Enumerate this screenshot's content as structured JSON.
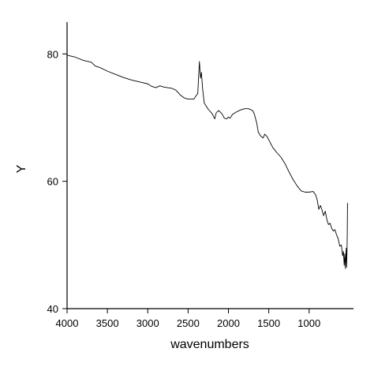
{
  "chart_data": {
    "type": "line",
    "title": "",
    "xlabel": "wavenumbers",
    "ylabel": "Y",
    "xlim": [
      4000,
      450
    ],
    "ylim": [
      40,
      85
    ],
    "x_reversed": true,
    "grid": false,
    "legend": "none",
    "x_ticks": [
      4000,
      3500,
      3000,
      2500,
      2000,
      1500,
      1000
    ],
    "y_ticks": [
      40,
      60,
      80
    ],
    "x_tick_labels": [
      "4000",
      "3500",
      "3000",
      "2500",
      "2000",
      "1500",
      "1000"
    ],
    "y_tick_labels": [
      "40",
      "60",
      "80"
    ],
    "series": [
      {
        "color": "#000000",
        "points": [
          [
            4000,
            79.8
          ],
          [
            3900,
            79.5
          ],
          [
            3800,
            79.0
          ],
          [
            3700,
            78.7
          ],
          [
            3650,
            78.1
          ],
          [
            3600,
            77.9
          ],
          [
            3500,
            77.3
          ],
          [
            3400,
            76.8
          ],
          [
            3300,
            76.3
          ],
          [
            3200,
            75.9
          ],
          [
            3100,
            75.6
          ],
          [
            3000,
            75.3
          ],
          [
            2950,
            74.9
          ],
          [
            2900,
            74.7
          ],
          [
            2850,
            75.0
          ],
          [
            2800,
            74.8
          ],
          [
            2700,
            74.6
          ],
          [
            2650,
            74.3
          ],
          [
            2600,
            73.6
          ],
          [
            2550,
            73.1
          ],
          [
            2500,
            72.9
          ],
          [
            2430,
            72.9
          ],
          [
            2380,
            73.8
          ],
          [
            2360,
            78.8
          ],
          [
            2345,
            76.2
          ],
          [
            2335,
            77.1
          ],
          [
            2320,
            74.5
          ],
          [
            2300,
            72.3
          ],
          [
            2250,
            71.3
          ],
          [
            2200,
            70.6
          ],
          [
            2170,
            69.8
          ],
          [
            2150,
            70.8
          ],
          [
            2120,
            71.1
          ],
          [
            2080,
            70.6
          ],
          [
            2050,
            69.9
          ],
          [
            2020,
            69.8
          ],
          [
            2000,
            70.1
          ],
          [
            1980,
            69.9
          ],
          [
            1950,
            70.5
          ],
          [
            1900,
            70.9
          ],
          [
            1850,
            71.2
          ],
          [
            1800,
            71.4
          ],
          [
            1750,
            71.4
          ],
          [
            1700,
            71.1
          ],
          [
            1680,
            70.6
          ],
          [
            1650,
            69.2
          ],
          [
            1630,
            67.7
          ],
          [
            1600,
            67.1
          ],
          [
            1570,
            66.8
          ],
          [
            1550,
            67.4
          ],
          [
            1520,
            67.0
          ],
          [
            1500,
            66.5
          ],
          [
            1450,
            65.3
          ],
          [
            1400,
            64.5
          ],
          [
            1350,
            63.8
          ],
          [
            1300,
            62.8
          ],
          [
            1250,
            61.5
          ],
          [
            1200,
            60.3
          ],
          [
            1150,
            59.3
          ],
          [
            1100,
            58.5
          ],
          [
            1050,
            58.3
          ],
          [
            1000,
            58.3
          ],
          [
            950,
            58.4
          ],
          [
            920,
            57.9
          ],
          [
            900,
            57.1
          ],
          [
            880,
            55.6
          ],
          [
            860,
            56.2
          ],
          [
            840,
            55.5
          ],
          [
            820,
            54.6
          ],
          [
            800,
            55.3
          ],
          [
            780,
            54.0
          ],
          [
            760,
            53.2
          ],
          [
            740,
            53.4
          ],
          [
            720,
            52.6
          ],
          [
            700,
            52.2
          ],
          [
            680,
            52.4
          ],
          [
            660,
            51.6
          ],
          [
            640,
            51.0
          ],
          [
            620,
            49.8
          ],
          [
            600,
            50.0
          ],
          [
            585,
            48.3
          ],
          [
            575,
            49.0
          ],
          [
            565,
            46.8
          ],
          [
            558,
            48.6
          ],
          [
            550,
            46.3
          ],
          [
            545,
            48.2
          ],
          [
            540,
            49.5
          ],
          [
            535,
            46.5
          ],
          [
            530,
            49.3
          ],
          [
            527,
            52.0
          ],
          [
            524,
            56.6
          ]
        ]
      }
    ]
  }
}
